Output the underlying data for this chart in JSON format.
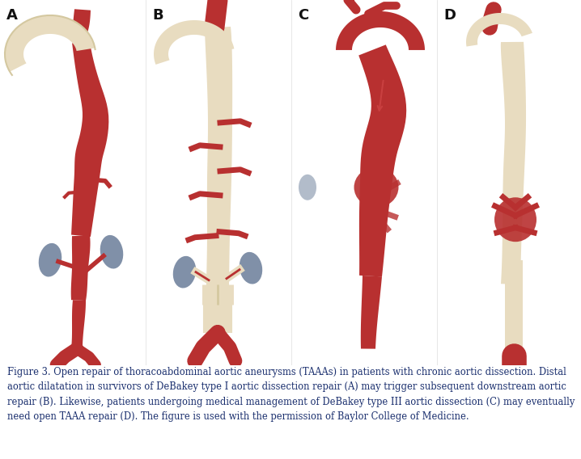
{
  "bg_color": "#ffffff",
  "panel_labels": [
    "A",
    "B",
    "C",
    "D"
  ],
  "caption_text": "Figure 3. Open repair of thoracoabdominal aortic aneurysms (TAAAs) in patients with chronic aortic dissection. Distal aortic dilatation in survivors of DeBakey type I aortic dissection repair (A) may trigger subsequent downstream aortic repair (B). Likewise, patients undergoing medical management of DeBakey type III aortic dissection (C) may eventually need open TAAA repair (D). The figure is used with the permission of Baylor College of Medicine.",
  "caption_color": "#1a2f6e",
  "caption_fontsize": 8.3,
  "figure_width": 7.18,
  "figure_height": 5.68,
  "label_fontsize": 13,
  "label_color": "#111111",
  "red": "#b83030",
  "red_light": "#c94040",
  "cream": "#e8dcc0",
  "cream_dark": "#d4c8a0",
  "kidney_color": "#8090a8",
  "white_bg": "#ffffff"
}
